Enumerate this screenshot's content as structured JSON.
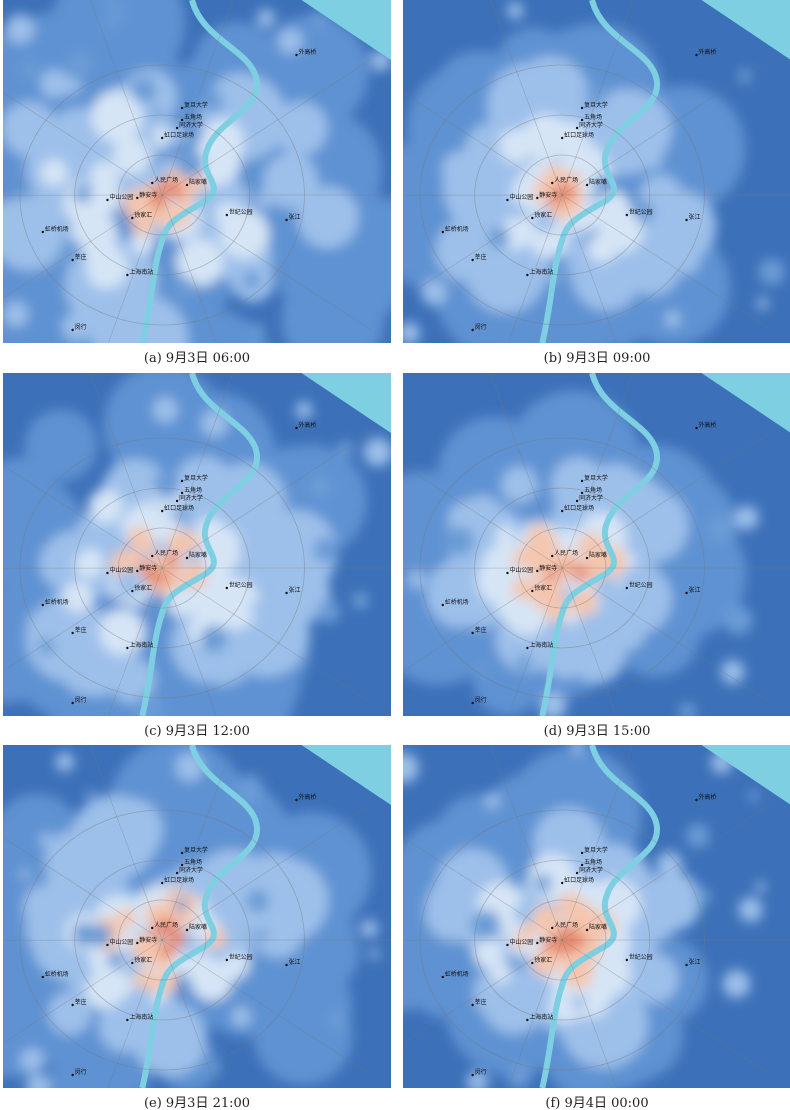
{
  "panels": [
    {
      "caption": "(a) 9月3日 06:00"
    },
    {
      "caption": "(b) 9月3日 09:00"
    },
    {
      "caption": "(c) 9月3日 12:00"
    },
    {
      "caption": "(d) 9月3日 15:00"
    },
    {
      "caption": "(e) 9月3日 21:00"
    },
    {
      "caption": "(f) 9月4日 00:00"
    }
  ],
  "places": [
    {
      "label": "中山公园"
    },
    {
      "label": "静安寺"
    },
    {
      "label": "人民广场"
    },
    {
      "label": "陆家嘴"
    },
    {
      "label": "徐家汇"
    },
    {
      "label": "上海南站"
    },
    {
      "label": "虹桥机场"
    },
    {
      "label": "五角场"
    },
    {
      "label": "复旦大学"
    },
    {
      "label": "同济大学"
    },
    {
      "label": "虹口足球场"
    },
    {
      "label": "世纪公园"
    },
    {
      "label": "张江"
    },
    {
      "label": "外高桥"
    },
    {
      "label": "闵行"
    },
    {
      "label": "莘庄"
    }
  ]
}
